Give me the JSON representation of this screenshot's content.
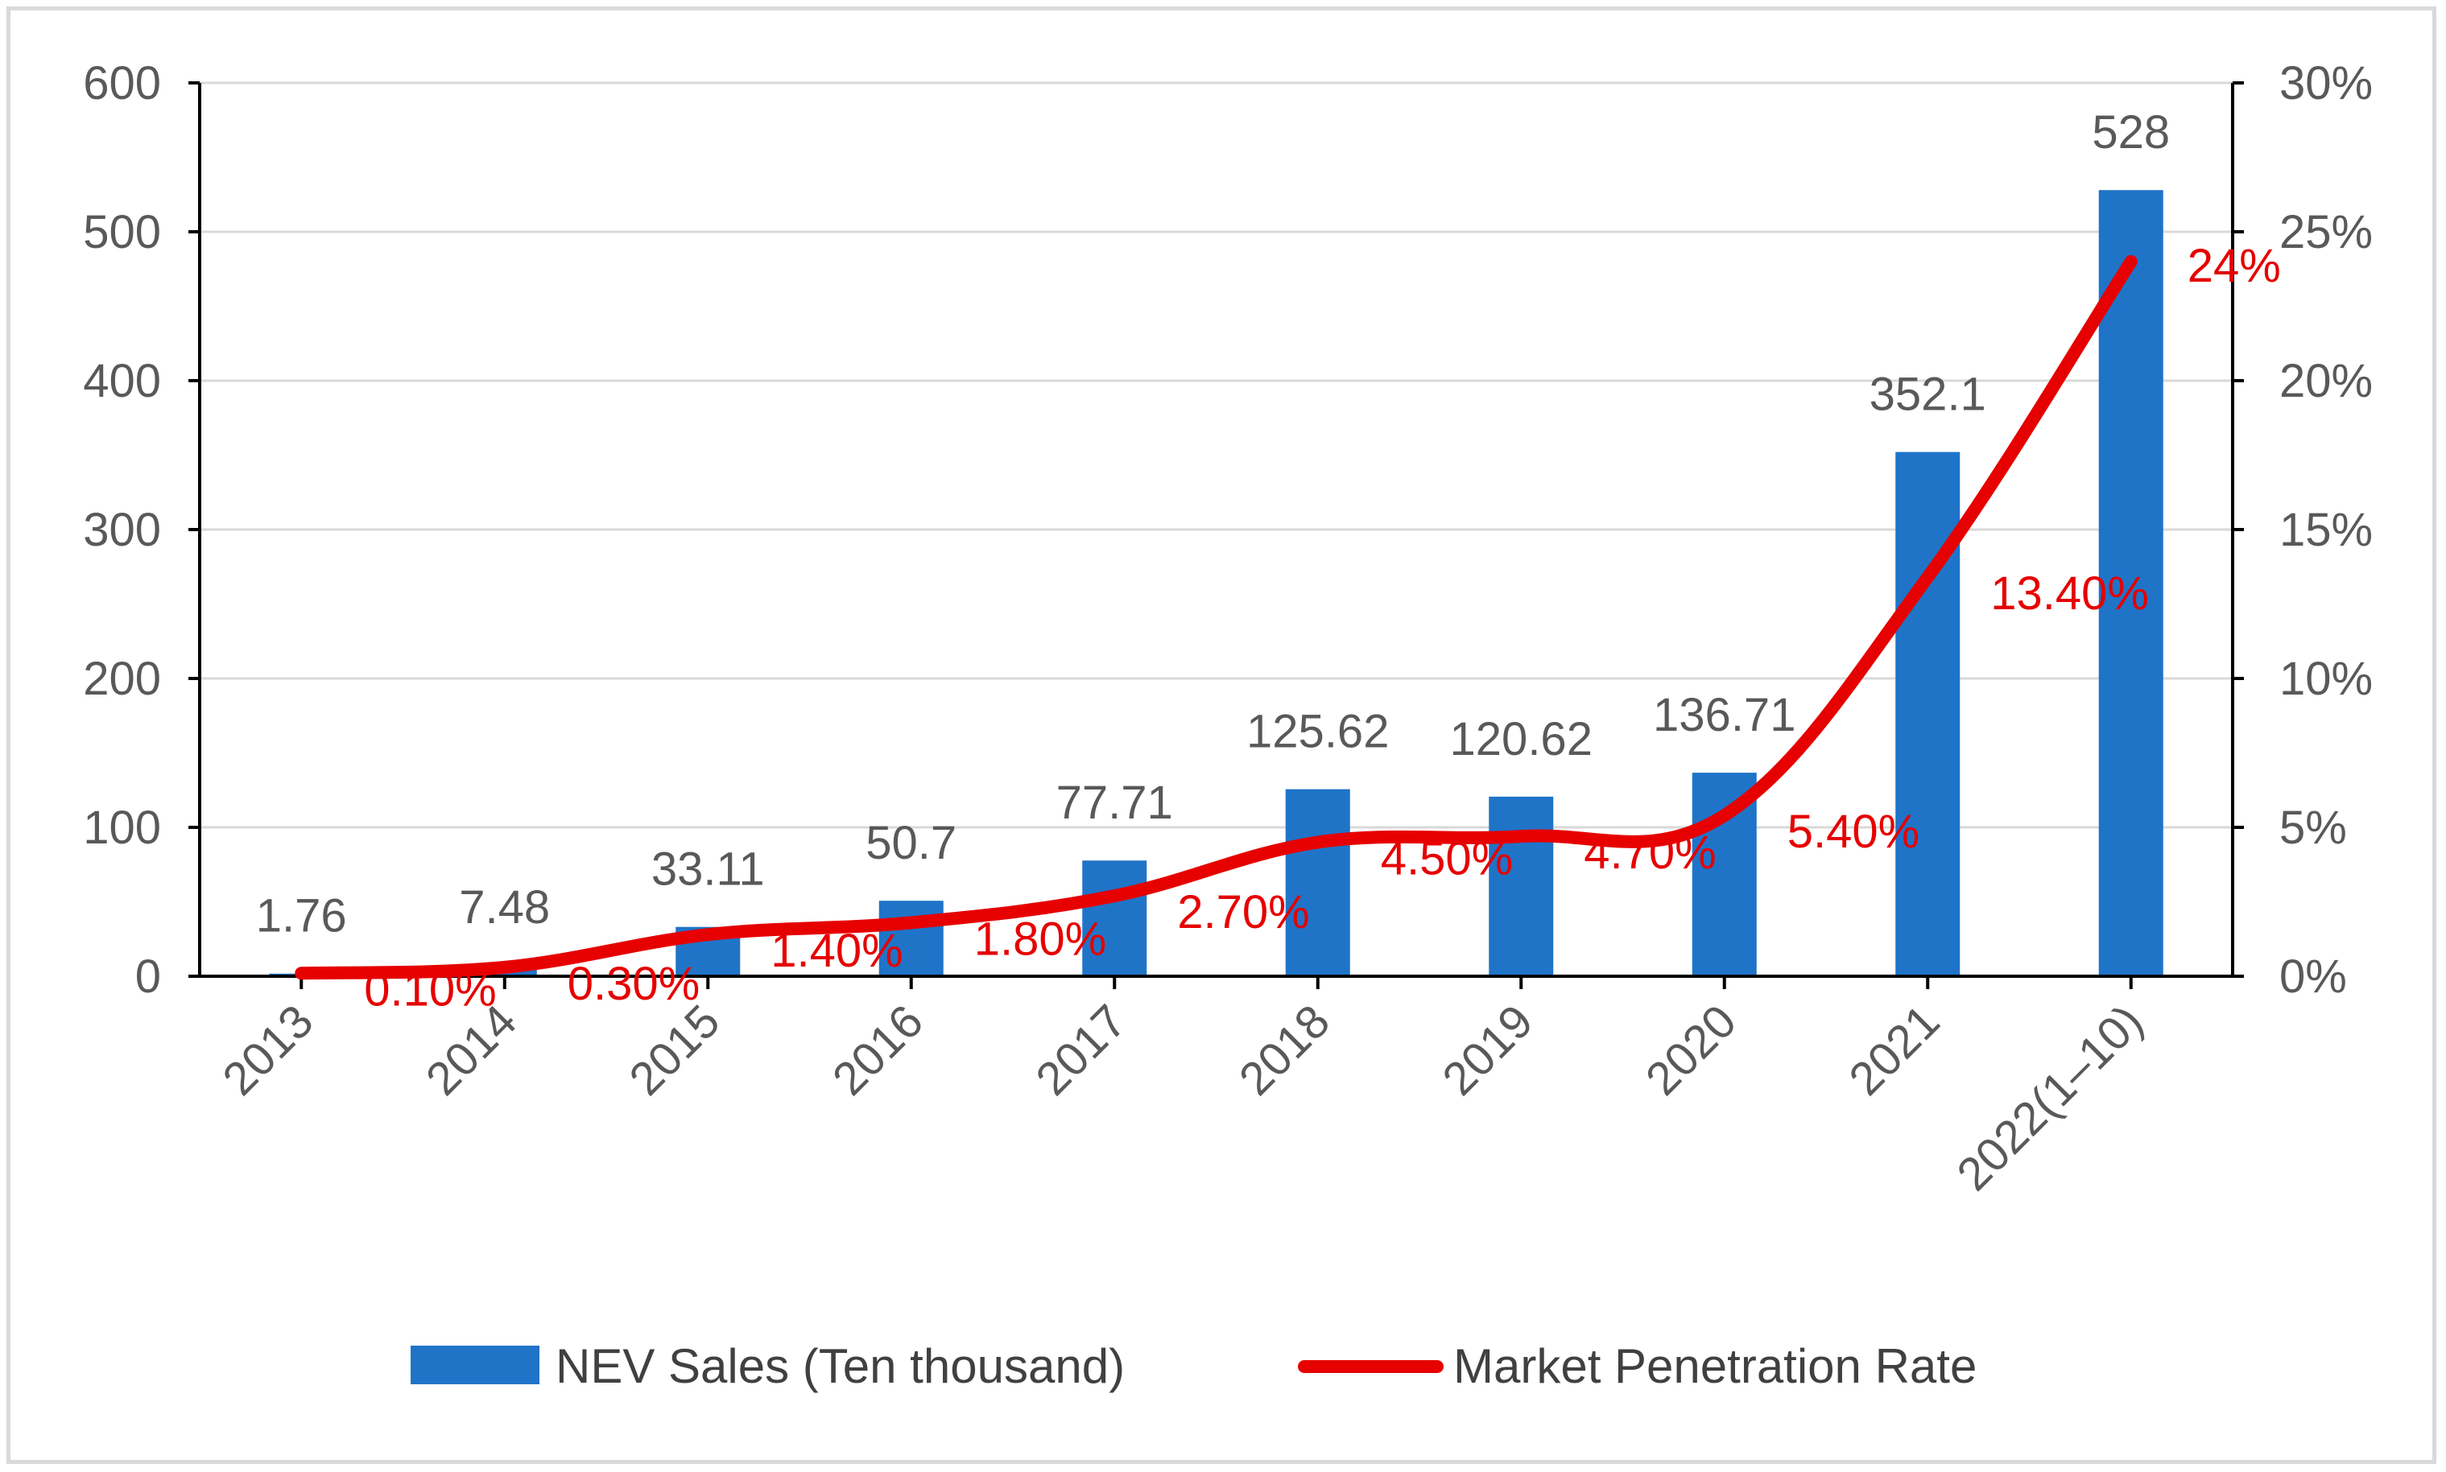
{
  "chart_data": {
    "type": "bar+line",
    "categories": [
      "2013",
      "2014",
      "2015",
      "2016",
      "2017",
      "2018",
      "2019",
      "2020",
      "2021",
      "2022(1–10)"
    ],
    "series": [
      {
        "name": "NEV Sales (Ten thousand)",
        "type": "bar",
        "axis": "left",
        "color": "#1f74c8",
        "values": [
          1.76,
          7.48,
          33.11,
          50.7,
          77.71,
          125.62,
          120.62,
          136.71,
          352.1,
          528
        ],
        "labels": [
          "1.76",
          "7.48",
          "33.11",
          "50.7",
          "77.71",
          "125.62",
          "120.62",
          "136.71",
          "352.1",
          "528"
        ]
      },
      {
        "name": "Market Penetration Rate",
        "type": "line",
        "axis": "right",
        "color": "#e60000",
        "values": [
          0.1,
          0.3,
          1.4,
          1.8,
          2.7,
          4.5,
          4.7,
          5.4,
          13.4,
          24
        ],
        "labels": [
          "0.10%",
          "0.30%",
          "1.40%",
          "1.80%",
          "2.70%",
          "4.50%",
          "4.70%",
          "5.40%",
          "13.40%",
          "24%"
        ]
      }
    ],
    "left_axis": {
      "min": 0,
      "max": 600,
      "ticks": [
        "0",
        "100",
        "200",
        "300",
        "400",
        "500",
        "600"
      ]
    },
    "right_axis": {
      "min": 0,
      "max": 30,
      "ticks": [
        "0%",
        "5%",
        "10%",
        "15%",
        "20%",
        "25%",
        "30%"
      ]
    },
    "grid": true,
    "legend_position": "bottom"
  }
}
